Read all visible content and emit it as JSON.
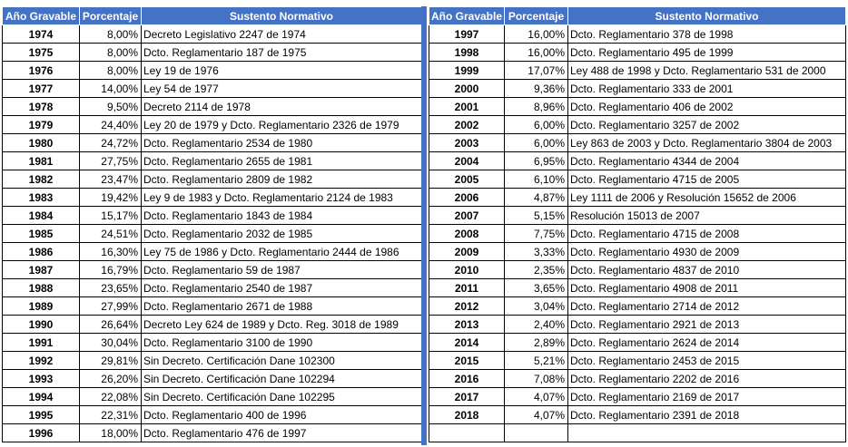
{
  "headers": {
    "year": "Año Gravable",
    "percent": "Porcentaje",
    "norm": "Sustento Normativo"
  },
  "colors": {
    "header_bg": "#4472c4",
    "header_text": "#ffffff",
    "separator": "#4472c4"
  },
  "left_rows": [
    {
      "year": "1974",
      "percent": "8,00%",
      "norm": "Decreto Legislativo 2247 de 1974"
    },
    {
      "year": "1975",
      "percent": "8,00%",
      "norm": "Dcto. Reglamentario 187 de 1975"
    },
    {
      "year": "1976",
      "percent": "8,00%",
      "norm": "Ley 19 de 1976"
    },
    {
      "year": "1977",
      "percent": "14,00%",
      "norm": "Ley  54 de 1977"
    },
    {
      "year": "1978",
      "percent": "9,50%",
      "norm": "Decreto 2114 de 1978"
    },
    {
      "year": "1979",
      "percent": "24,40%",
      "norm": "Ley 20 de 1979 y Dcto. Reglamentario 2326 de 1979"
    },
    {
      "year": "1980",
      "percent": "24,72%",
      "norm": "Dcto. Reglamentario 2534 de 1980"
    },
    {
      "year": "1981",
      "percent": "27,75%",
      "norm": "Dcto. Reglamentario 2655 de 1981"
    },
    {
      "year": "1982",
      "percent": "23,47%",
      "norm": "Dcto. Reglamentario 2809 de 1982"
    },
    {
      "year": "1983",
      "percent": "19,42%",
      "norm": "Ley 9 de 1983 y Dcto. Reglamentario 2124 de 1983"
    },
    {
      "year": "1984",
      "percent": "15,17%",
      "norm": "Dcto. Reglamentario 1843 de 1984"
    },
    {
      "year": "1985",
      "percent": "24,51%",
      "norm": "Dcto. Reglamentario 2032 de 1985"
    },
    {
      "year": "1986",
      "percent": "16,30%",
      "norm": "Ley 75 de 1986 y Dcto. Reglamentario 2444 de 1986"
    },
    {
      "year": "1987",
      "percent": "16,79%",
      "norm": "Dcto. Reglamentario 59 de 1987"
    },
    {
      "year": "1988",
      "percent": "23,65%",
      "norm": "Dcto. Reglamentario 2540 de 1987"
    },
    {
      "year": "1989",
      "percent": "27,99%",
      "norm": "Dcto. Reglamentario 2671 de 1988"
    },
    {
      "year": "1990",
      "percent": "26,64%",
      "norm": "Decreto Ley 624 de 1989 y Dcto. Reg. 3018 de 1989"
    },
    {
      "year": "1991",
      "percent": "30,04%",
      "norm": "Dcto. Reglamentario 3100 de 1990"
    },
    {
      "year": "1992",
      "percent": "29,81%",
      "norm": "Sin Decreto. Certificación Dane 102300"
    },
    {
      "year": "1993",
      "percent": "26,20%",
      "norm": "Sin Decreto. Certificación Dane 102294"
    },
    {
      "year": "1994",
      "percent": "22,08%",
      "norm": "Sin Decreto. Certificación Dane 102295"
    },
    {
      "year": "1995",
      "percent": "22,31%",
      "norm": "Dcto. Reglamentario 400 de 1996"
    },
    {
      "year": "1996",
      "percent": "18,00%",
      "norm": "Dcto. Reglamentario 476 de 1997"
    }
  ],
  "right_rows": [
    {
      "year": "1997",
      "percent": "16,00%",
      "norm": "Dcto. Reglamentario 378 de 1998"
    },
    {
      "year": "1998",
      "percent": "16,00%",
      "norm": "Dcto. Reglamentario 495 de 1999"
    },
    {
      "year": "1999",
      "percent": "17,07%",
      "norm": "Ley 488 de 1998 y Dcto. Reglamentario 531 de 2000"
    },
    {
      "year": "2000",
      "percent": "9,36%",
      "norm": "Dcto. Reglamentario 333 de 2001"
    },
    {
      "year": "2001",
      "percent": "8,96%",
      "norm": "Dcto. Reglamentario 406 de 2002"
    },
    {
      "year": "2002",
      "percent": "6,00%",
      "norm": "Dcto. Reglamentario 3257 de 2002"
    },
    {
      "year": "2003",
      "percent": "6,00%",
      "norm": "Ley 863 de 2003 y Dcto. Reglamentario 3804 de 2003"
    },
    {
      "year": "2004",
      "percent": "6,95%",
      "norm": "Dcto. Reglamentario 4344 de 2004"
    },
    {
      "year": "2005",
      "percent": "6,10%",
      "norm": "Dcto. Reglamentario 4715 de 2005"
    },
    {
      "year": "2006",
      "percent": "4,87%",
      "norm": "Ley 1111 de 2006 y Resolución 15652 de 2006"
    },
    {
      "year": "2007",
      "percent": "5,15%",
      "norm": "Resolución 15013 de 2007"
    },
    {
      "year": "2008",
      "percent": "7,75%",
      "norm": "Dcto. Reglamentario 4715 de 2008"
    },
    {
      "year": "2009",
      "percent": "3,33%",
      "norm": "Dcto. Reglamentario  4930 de 2009"
    },
    {
      "year": "2010",
      "percent": "2,35%",
      "norm": "Dcto. Reglamentario  4837 de 2010"
    },
    {
      "year": "2011",
      "percent": "3,65%",
      "norm": "Dcto. Reglamentario 4908 de 2011"
    },
    {
      "year": "2012",
      "percent": "3,04%",
      "norm": "Dcto. Reglamentario 2714 de 2012"
    },
    {
      "year": "2013",
      "percent": "2,40%",
      "norm": "Dcto. Reglamentario 2921 de 2013"
    },
    {
      "year": "2014",
      "percent": "2,89%",
      "norm": "Dcto. Reglamentario 2624 de 2014"
    },
    {
      "year": "2015",
      "percent": "5,21%",
      "norm": "Dcto. Reglamentario 2453 de 2015"
    },
    {
      "year": "2016",
      "percent": "7,08%",
      "norm": "Dcto. Reglamentario 2202 de 2016"
    },
    {
      "year": "2017",
      "percent": "4,07%",
      "norm": "Dcto. Reglamentario 2169 de 2017"
    },
    {
      "year": "2018",
      "percent": "4,07%",
      "norm": "Dcto. Reglamentario 2391 de 2018"
    },
    {
      "year": "",
      "percent": "",
      "norm": ""
    }
  ]
}
